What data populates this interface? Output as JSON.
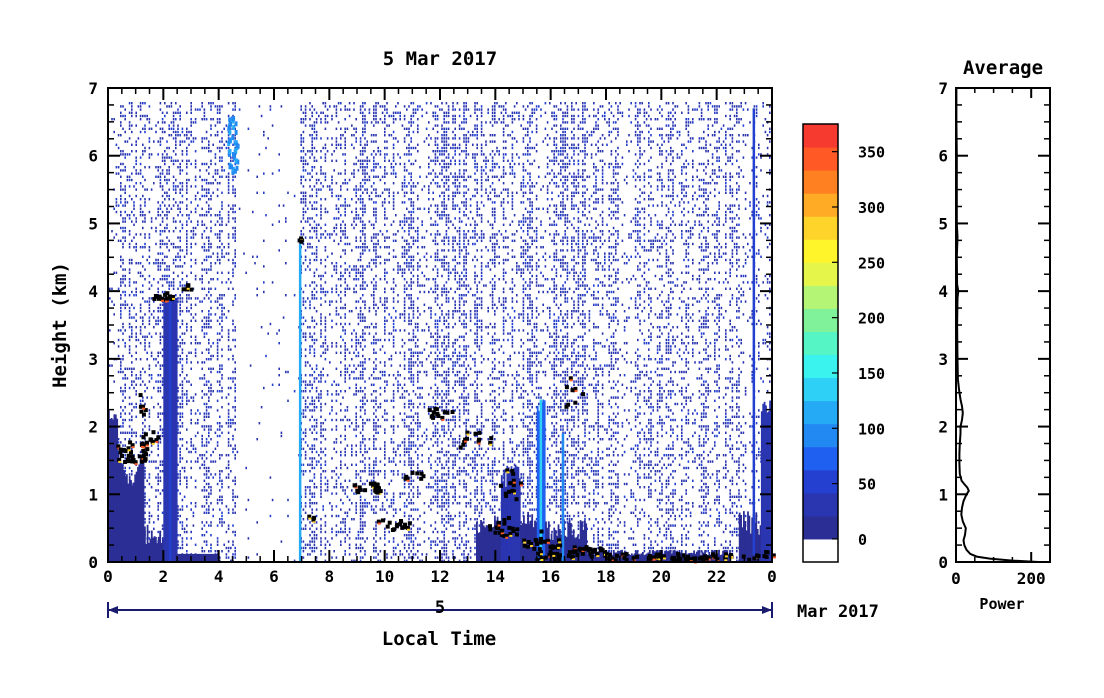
{
  "chart_data": [
    {
      "type": "heatmap",
      "title": "5 Mar 2017",
      "xlabel": "Local Time",
      "ylabel": "Height (km)",
      "xlim": [
        0,
        24
      ],
      "ylim": [
        0,
        7
      ],
      "x_ticks": [
        "0",
        "2",
        "4",
        "6",
        "8",
        "10",
        "12",
        "14",
        "16",
        "18",
        "20",
        "22",
        "0"
      ],
      "y_ticks": [
        "0",
        "1",
        "2",
        "3",
        "4",
        "5",
        "6",
        "7"
      ],
      "date_bar": {
        "day_label": "5",
        "month_label": "Mar 2017"
      },
      "colorbar": {
        "range": [
          0,
          375
        ],
        "ticks": [
          "0",
          "50",
          "100",
          "150",
          "200",
          "250",
          "300",
          "350"
        ],
        "colors": [
          "#ffffff",
          "#2b2f95",
          "#2a35b0",
          "#2440d0",
          "#2060f0",
          "#2288f2",
          "#25aaf5",
          "#2fd0f6",
          "#3af2ee",
          "#55f5c5",
          "#80f39a",
          "#b4f575",
          "#e6f54a",
          "#fff52a",
          "#ffd42a",
          "#ffab25",
          "#ff8020",
          "#ff5a25",
          "#f73a30"
        ]
      },
      "layers": {
        "cloud_base_markers": "black",
        "noise_speckle": "blue"
      }
    },
    {
      "type": "line",
      "title": "Average",
      "xlabel": "Power",
      "xlim": [
        0,
        250
      ],
      "ylim": [
        0,
        7
      ],
      "x_ticks": [
        "0",
        "200"
      ],
      "y_ticks": [
        "0",
        "1",
        "2",
        "3",
        "4",
        "5",
        "6",
        "7"
      ],
      "profile": {
        "height": [
          0.0,
          0.02,
          0.05,
          0.08,
          0.12,
          0.18,
          0.25,
          0.32,
          0.4,
          0.5,
          0.6,
          0.7,
          0.8,
          0.9,
          1.0,
          1.05,
          1.1,
          1.15,
          1.2,
          1.3,
          1.45,
          1.6,
          1.75,
          1.9,
          2.0,
          2.1,
          2.2,
          2.3,
          2.4,
          2.55,
          2.7,
          3.0,
          3.5,
          3.9,
          4.0,
          4.1,
          4.5,
          4.8,
          5.0,
          5.5,
          6.0,
          6.5,
          7.0
        ],
        "power": [
          220,
          150,
          90,
          55,
          38,
          28,
          22,
          20,
          24,
          26,
          18,
          14,
          16,
          20,
          28,
          34,
          30,
          22,
          15,
          10,
          9,
          9,
          10,
          12,
          12,
          16,
          18,
          16,
          12,
          8,
          5,
          4,
          3,
          4,
          6,
          3,
          2,
          4,
          2,
          2,
          2,
          1,
          1
        ]
      }
    }
  ]
}
